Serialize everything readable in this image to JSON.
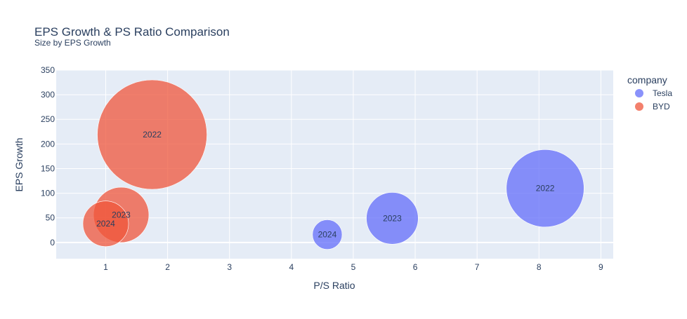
{
  "chart_data": {
    "type": "scatter",
    "title": "EPS Growth & PS Ratio Comparison",
    "subtitle": "Size by EPS Growth",
    "xlabel": "P/S Ratio",
    "ylabel": "EPS Growth",
    "xlim": [
      0.2,
      9.2
    ],
    "ylim": [
      -33,
      350
    ],
    "x_ticks": [
      1,
      2,
      3,
      4,
      5,
      6,
      7,
      8,
      9
    ],
    "y_ticks": [
      0,
      50,
      100,
      150,
      200,
      250,
      300,
      350
    ],
    "grid": true,
    "legend": {
      "title": "company",
      "position": "top-right"
    },
    "size_by": "EPS Growth",
    "series": [
      {
        "name": "Tesla",
        "color": "#636efa",
        "points": [
          {
            "x": 8.1,
            "y": 110,
            "label": "2022"
          },
          {
            "x": 5.63,
            "y": 49,
            "label": "2023"
          },
          {
            "x": 4.58,
            "y": 16,
            "label": "2024"
          }
        ]
      },
      {
        "name": "BYD",
        "color": "#ef553b",
        "points": [
          {
            "x": 1.75,
            "y": 219,
            "label": "2022"
          },
          {
            "x": 1.25,
            "y": 56,
            "label": "2023"
          },
          {
            "x": 1.0,
            "y": 38,
            "label": "2024"
          }
        ]
      }
    ]
  }
}
